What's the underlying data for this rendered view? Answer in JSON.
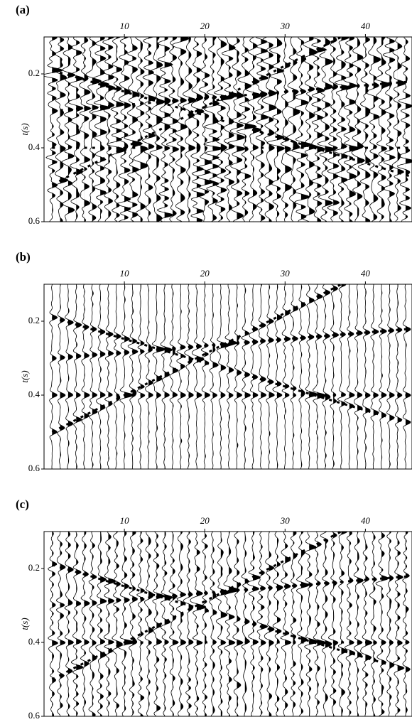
{
  "chart_data": [
    {
      "type": "wiggle",
      "title": "(a)",
      "ylabel": "t(s)",
      "xlim": [
        0,
        45.8
      ],
      "xticks": [
        10,
        20,
        30,
        40
      ],
      "ylim": [
        0.1,
        0.6
      ],
      "yticks": [
        0.2,
        0.4,
        0.6
      ],
      "inverted_y": true,
      "noise": 0.9,
      "color": "#000000",
      "series": [
        {
          "x": [
            1,
            46
          ],
          "values": [
            0.19,
            0.48
          ]
        },
        {
          "x": [
            1,
            37
          ],
          "values": [
            0.5,
            0.1
          ]
        },
        {
          "x": [
            1,
            46
          ],
          "values": [
            0.4,
            0.4
          ]
        },
        {
          "x": [
            1,
            46
          ],
          "values": [
            0.3,
            0.22
          ]
        }
      ]
    },
    {
      "type": "wiggle",
      "title": "(b)",
      "ylabel": "t(s)",
      "xlim": [
        0,
        45.8
      ],
      "xticks": [
        10,
        20,
        30,
        40
      ],
      "ylim": [
        0.1,
        0.6
      ],
      "yticks": [
        0.2,
        0.4,
        0.6
      ],
      "inverted_y": true,
      "noise": 0.12,
      "color": "#000000",
      "series": [
        {
          "x": [
            1,
            46
          ],
          "values": [
            0.19,
            0.48
          ]
        },
        {
          "x": [
            1,
            37
          ],
          "values": [
            0.5,
            0.1
          ]
        },
        {
          "x": [
            1,
            46
          ],
          "values": [
            0.4,
            0.4
          ]
        },
        {
          "x": [
            1,
            46
          ],
          "values": [
            0.3,
            0.22
          ]
        }
      ]
    },
    {
      "type": "wiggle",
      "title": "(c)",
      "ylabel": "t(s)",
      "xlim": [
        0,
        45.8
      ],
      "xticks": [
        10,
        20,
        30,
        40
      ],
      "ylim": [
        0.1,
        0.6
      ],
      "yticks": [
        0.2,
        0.4,
        0.6
      ],
      "inverted_y": true,
      "noise": 0.4,
      "color": "#000000",
      "series": [
        {
          "x": [
            1,
            46
          ],
          "values": [
            0.19,
            0.48
          ]
        },
        {
          "x": [
            1,
            37
          ],
          "values": [
            0.5,
            0.1
          ]
        },
        {
          "x": [
            1,
            46
          ],
          "values": [
            0.4,
            0.4
          ]
        },
        {
          "x": [
            1,
            46
          ],
          "values": [
            0.3,
            0.22
          ]
        }
      ]
    }
  ]
}
